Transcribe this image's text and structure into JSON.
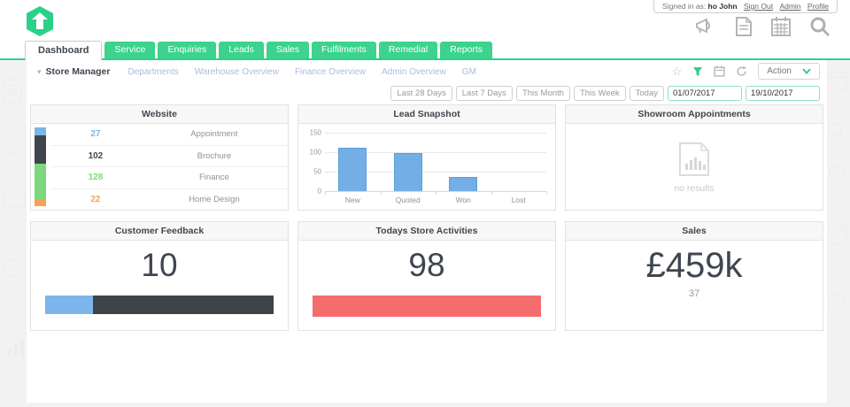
{
  "user_bar": {
    "prefix": "Signed in as:",
    "username": "ho John",
    "links": [
      "Sign Out",
      "Admin",
      "Profile"
    ]
  },
  "header_icons": [
    "megaphone-icon",
    "document-icon",
    "calendar-icon",
    "search-icon"
  ],
  "tabs": [
    {
      "label": "Dashboard",
      "active": true
    },
    {
      "label": "Service",
      "active": false
    },
    {
      "label": "Enquiries",
      "active": false
    },
    {
      "label": "Leads",
      "active": false
    },
    {
      "label": "Sales",
      "active": false
    },
    {
      "label": "Fulfilments",
      "active": false
    },
    {
      "label": "Remedial",
      "active": false
    },
    {
      "label": "Reports",
      "active": false
    }
  ],
  "subnav": {
    "current": "Store Manager",
    "links": [
      "Departments",
      "Warehouse Overview",
      "Finance Overview",
      "Admin Overview",
      "GM"
    ],
    "tools": [
      "star-icon",
      "filter-icon",
      "calendar-icon",
      "refresh-icon"
    ],
    "action_label": "Action"
  },
  "filters": {
    "buttons": [
      "Last 28 Days",
      "Last 7 Days",
      "This Month",
      "This Week",
      "Today"
    ],
    "date_from": "01/07/2017",
    "date_to": "19/10/2017"
  },
  "cards": {
    "website": {
      "title": "Website",
      "rows": [
        {
          "value": "27",
          "label": "Appointment",
          "color": "#79b7e8"
        },
        {
          "value": "102",
          "label": "Brochure",
          "color": "#40464d"
        },
        {
          "value": "128",
          "label": "Finance",
          "color": "#7cd87c"
        },
        {
          "value": "22",
          "label": "Home Design",
          "color": "#f5a356"
        }
      ]
    },
    "lead_snapshot": {
      "title": "Lead Snapshot"
    },
    "showroom": {
      "title": "Showroom Appointments",
      "empty_text": "no results"
    },
    "feedback": {
      "title": "Customer Feedback",
      "value": "10",
      "segments": [
        {
          "color": "#7cb5ec",
          "pct": 21
        },
        {
          "color": "#3e4347",
          "pct": 79
        }
      ]
    },
    "activities": {
      "title": "Todays Store Activities",
      "value": "98",
      "bar_color": "#f56c6c",
      "bar_pct": 100
    },
    "sales": {
      "title": "Sales",
      "value": "£459k",
      "sub_value": "37"
    }
  },
  "chart_data": {
    "type": "bar",
    "title": "Lead Snapshot",
    "categories": [
      "New",
      "Quoted",
      "Won",
      "Lost"
    ],
    "values": [
      112,
      97,
      37,
      0
    ],
    "yticks": [
      0,
      50,
      100,
      150
    ],
    "ylim": [
      0,
      150
    ],
    "xlabel": "",
    "ylabel": "",
    "grid": true,
    "legend": false,
    "bar_color": "#73aee6"
  },
  "colors": {
    "accent_green": "#2fd088",
    "bar_blue": "#73aee6",
    "bar_red": "#f56c6c",
    "dark_text": "#3f4650"
  }
}
